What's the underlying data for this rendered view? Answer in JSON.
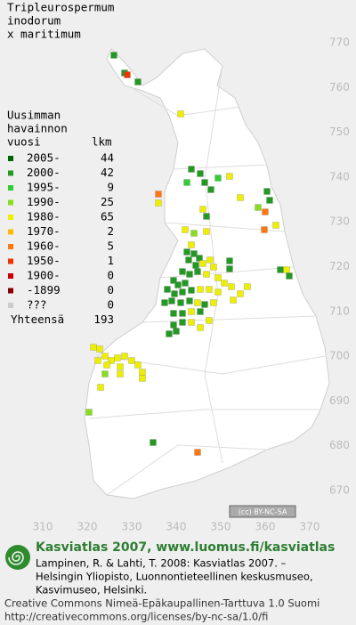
{
  "title": [
    "Tripleurospermum",
    "inodorum",
    "x maritimum"
  ],
  "legend": {
    "header": [
      "Uusimman",
      "havainnon",
      "vuosi",
      "lkm"
    ],
    "rows": [
      {
        "label": "2005-",
        "count": 44,
        "color": "#006400"
      },
      {
        "label": "2000-",
        "count": 42,
        "color": "#229922"
      },
      {
        "label": "1995-",
        "count": 9,
        "color": "#33cc33"
      },
      {
        "label": "1990-",
        "count": 25,
        "color": "#88dd22"
      },
      {
        "label": "1980-",
        "count": 65,
        "color": "#eeee00"
      },
      {
        "label": "1970-",
        "count": 2,
        "color": "#ffbb00"
      },
      {
        "label": "1960-",
        "count": 5,
        "color": "#ff7711"
      },
      {
        "label": "1950-",
        "count": 1,
        "color": "#ee3300"
      },
      {
        "label": "1900-",
        "count": 0,
        "color": "#cc0000"
      },
      {
        "label": "-1899",
        "count": 0,
        "color": "#880000"
      },
      {
        "label": "???",
        "count": 0,
        "color": "#cccccc"
      }
    ],
    "total": {
      "label": "Yhteensä",
      "count": 193
    }
  },
  "y_labels": [
    770,
    760,
    750,
    740,
    730,
    720,
    710,
    700,
    690,
    680,
    670
  ],
  "x_labels": [
    310,
    320,
    330,
    340,
    350,
    360,
    370
  ],
  "badge": "(cc) BY-NC-SA",
  "footer": {
    "heading": "Kasviatlas 2007, www.luomus.fi/kasviatlas",
    "citation": [
      "Lampinen, R. & Lahti, T. 2008: Kasviatlas 2007. –",
      "Helsingin Yliopisto, Luonnontieteellinen keskusmuseo,",
      "Kasvimuseo, Helsinki."
    ],
    "license": [
      "Creative Commons Nimeä-Epäkaupallinen-Tarttuva 1.0 Suomi",
      "http://creativecommons.org/licenses/by-nc-sa/1.0/fi"
    ]
  }
}
